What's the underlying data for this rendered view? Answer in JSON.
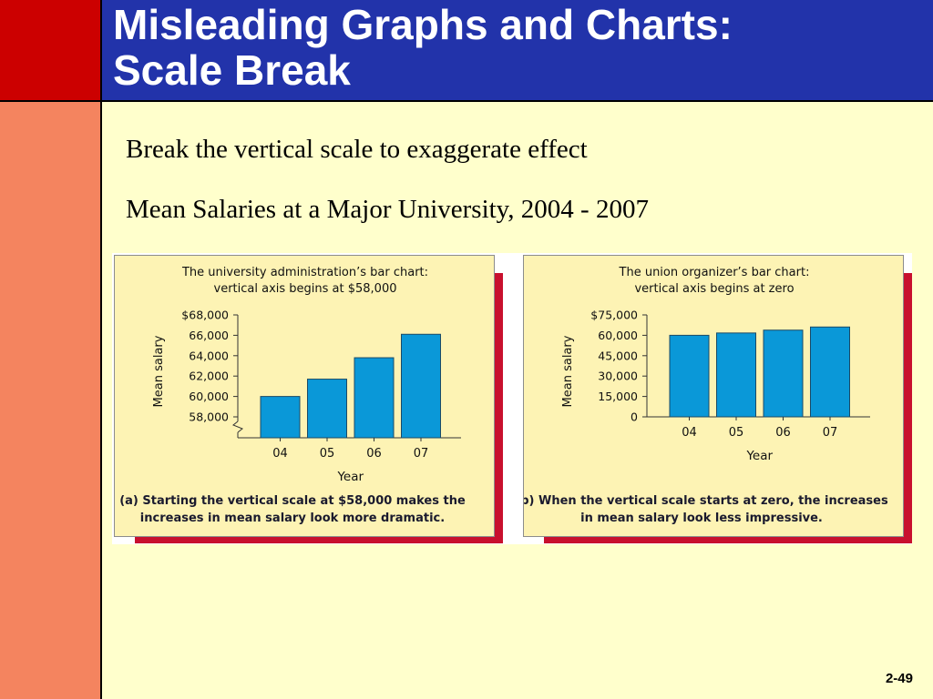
{
  "slide": {
    "title_line1": "Misleading Graphs and Charts:",
    "title_line2": "Scale Break",
    "subtitle": "Break the vertical scale to exaggerate effect",
    "chart_caption": "Mean Salaries at a Major University, 2004 - 2007",
    "page_number": "2-49"
  },
  "colors": {
    "bar": "#0a98d8",
    "title_bar": "#2233aa",
    "panel_fill": "#fdf3b4",
    "panel_shadow": "#c8102e"
  },
  "chart_data": [
    {
      "type": "bar",
      "title_line1": "The university administration’s bar chart:",
      "title_line2": "vertical axis begins at $58,000",
      "categories": [
        "04",
        "05",
        "06",
        "07"
      ],
      "values": [
        60000,
        61700,
        63800,
        66100
      ],
      "ylim": [
        58000,
        68000
      ],
      "yticks": [
        58000,
        60000,
        62000,
        64000,
        66000,
        68000
      ],
      "ytick_labels": [
        "58,000",
        "60,000",
        "62,000",
        "64,000",
        "66,000",
        "$68,000"
      ],
      "ylabel": "Mean salary",
      "xlabel": "Year",
      "scale_break": true,
      "footnote_line1": "(a) Starting the vertical scale at $58,000 makes the",
      "footnote_line2": "increases in mean salary look more dramatic."
    },
    {
      "type": "bar",
      "title_line1": "The union organizer’s bar chart:",
      "title_line2": "vertical axis begins at zero",
      "categories": [
        "04",
        "05",
        "06",
        "07"
      ],
      "values": [
        60000,
        61700,
        63800,
        66100
      ],
      "ylim": [
        0,
        75000
      ],
      "yticks": [
        0,
        15000,
        30000,
        45000,
        60000,
        75000
      ],
      "ytick_labels": [
        "0",
        "15,000",
        "30,000",
        "45,000",
        "60,000",
        "$75,000"
      ],
      "ylabel": "Mean salary",
      "xlabel": "Year",
      "scale_break": false,
      "footnote_line1": "(b) When the vertical scale starts at zero, the increases",
      "footnote_line2": "in mean salary look less impressive."
    }
  ]
}
